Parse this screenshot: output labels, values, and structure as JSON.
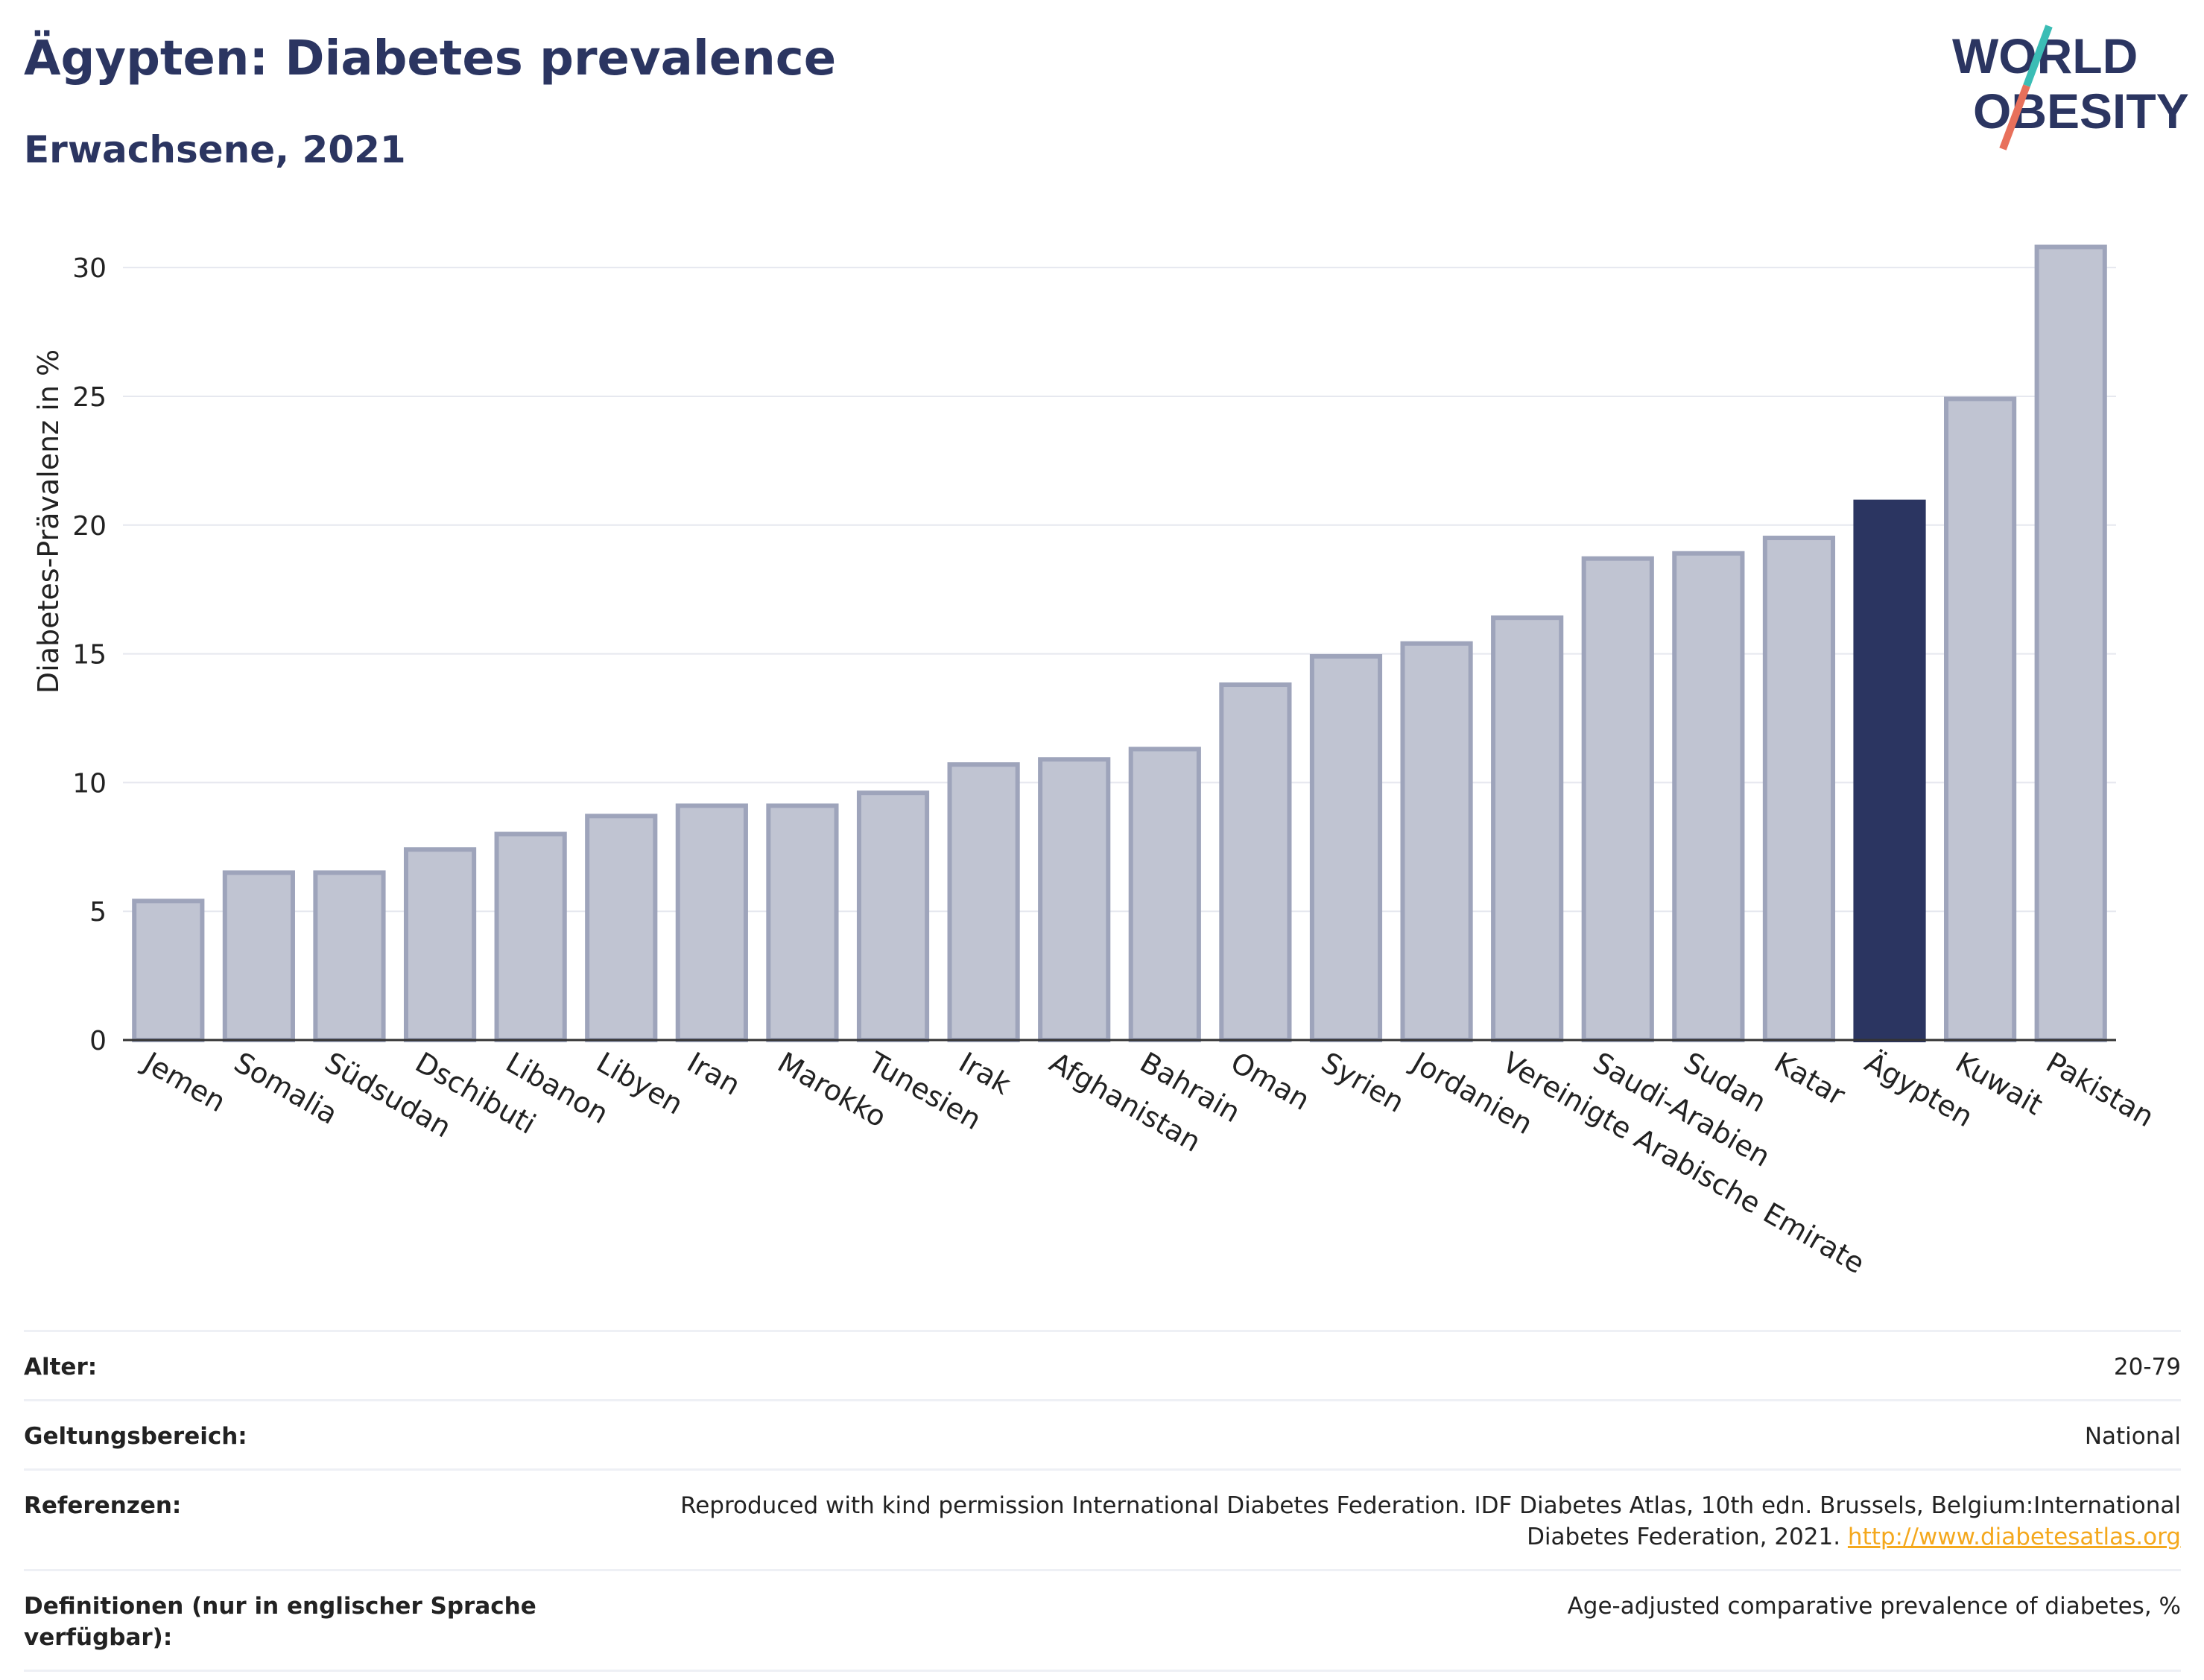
{
  "header": {
    "title": "Ägypten: Diabetes prevalence",
    "subtitle": "Erwachsene, 2021",
    "logo_line1": "WORLD",
    "logo_line2": "OBESITY"
  },
  "colors": {
    "bar_default": "#c0c4d2",
    "bar_default_stroke": "#9ea4bb",
    "bar_highlight": "#2b3561",
    "grid": "#e6e8ef",
    "axis": "#333333",
    "logo_text": "#2b3561",
    "logo_slash_top": "#3bbdb5",
    "logo_slash_bottom": "#e8705b"
  },
  "chart_data": {
    "type": "bar",
    "title": "Ägypten: Diabetes prevalence",
    "subtitle": "Erwachsene, 2021",
    "xlabel": "",
    "ylabel": "Diabetes-Prävalenz in %",
    "ylim": [
      0,
      32
    ],
    "yticks": [
      0,
      5,
      10,
      15,
      20,
      25,
      30
    ],
    "grid": true,
    "highlight": "Ägypten",
    "categories": [
      "Jemen",
      "Somalia",
      "Südsudan",
      "Dschibuti",
      "Libanon",
      "Libyen",
      "Iran",
      "Marokko",
      "Tunesien",
      "Irak",
      "Afghanistan",
      "Bahrain",
      "Oman",
      "Syrien",
      "Jordanien",
      "Vereinigte Arabische Emirate",
      "Saudi-Arabien",
      "Sudan",
      "Katar",
      "Ägypten",
      "Kuwait",
      "Pakistan"
    ],
    "values": [
      5.4,
      6.5,
      6.5,
      7.4,
      8.0,
      8.7,
      9.1,
      9.1,
      9.6,
      10.7,
      10.9,
      11.3,
      13.8,
      14.9,
      15.4,
      16.4,
      18.7,
      18.9,
      19.5,
      20.9,
      24.9,
      30.8
    ]
  },
  "meta": {
    "rows": [
      {
        "label": "Alter:",
        "value": "20-79"
      },
      {
        "label": "Geltungsbereich:",
        "value": "National"
      },
      {
        "label": "Referenzen:",
        "value": "Reproduced with kind permission International Diabetes Federation.  IDF Diabetes Atlas, 10th edn. Brussels, Belgium:International Diabetes Federation, 2021.",
        "link": "http://www.diabetesatlas.org"
      },
      {
        "label": "Definitionen (nur in englischer Sprache verfügbar):",
        "value": "Age-adjusted comparative prevalence of diabetes, %"
      }
    ]
  }
}
